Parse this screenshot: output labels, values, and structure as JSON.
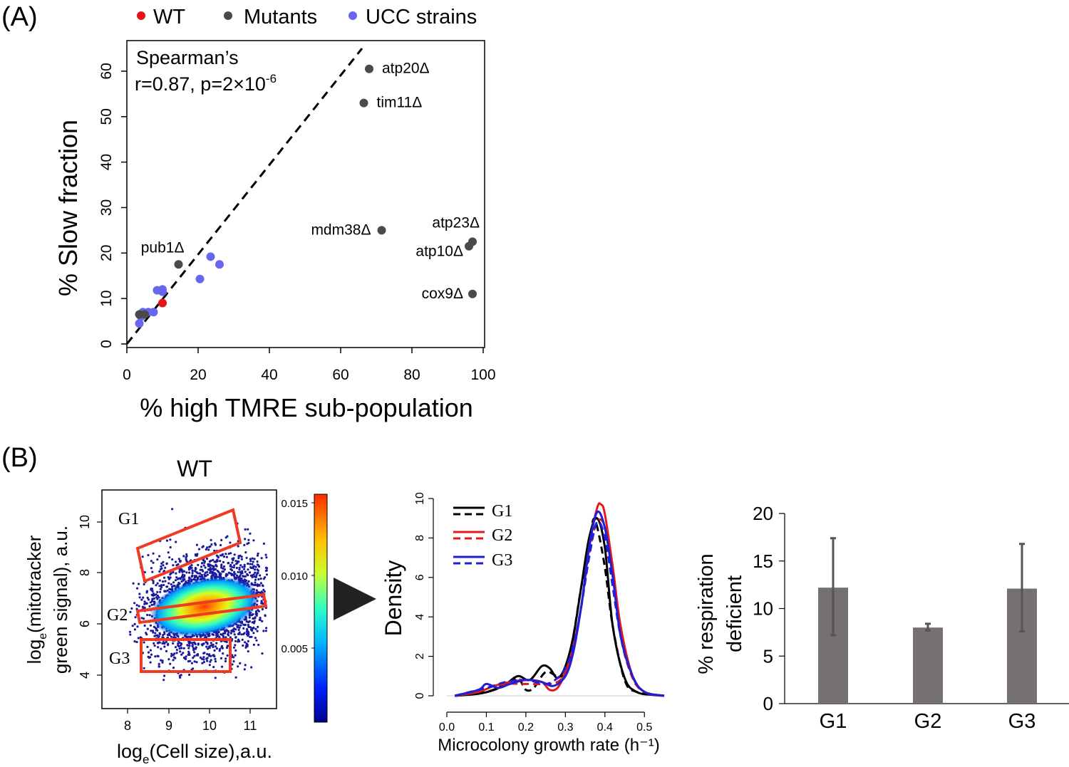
{
  "panel_a": {
    "label": "(A)",
    "stats_line1": "Spearman’s",
    "stats_line2": "r=0.87, p=2×10",
    "stats_exp": "-6"
  },
  "panel_b": {
    "label": "(B)",
    "flow": {
      "title": "WT",
      "ylabel_line1_pre": "log",
      "ylabel_line1_sub": "e",
      "ylabel_line1_post": "(mitotracker",
      "ylabel_line2": "green signal), a.u.",
      "xlabel_pre": "log",
      "xlabel_sub": "e",
      "xlabel_post": "(Cell size),a.u.",
      "gates": [
        "G1",
        "G2",
        "G3"
      ],
      "colorbar_ticks": [
        "0.015",
        "0.010",
        "0.005"
      ]
    },
    "legend": [
      "G1",
      "G2",
      "G3"
    ]
  },
  "colors": {
    "wt": "#e4141b",
    "mutants": "#4a4a4a",
    "ucc": "#6666f0",
    "bar": "#767171",
    "g1": "#000000",
    "g2": "#e31a1c",
    "g3": "#1f1fd6",
    "gate": "#ef3b24"
  },
  "chart_data": [
    {
      "type": "scatter",
      "id": "A",
      "title": "",
      "xlabel": "% high TMRE sub-population",
      "ylabel": "% Slow fraction",
      "xlim": [
        0,
        100
      ],
      "ylim": [
        0,
        65
      ],
      "xticks": [
        0,
        20,
        40,
        60,
        80,
        100
      ],
      "yticks": [
        0,
        10,
        20,
        30,
        40,
        50,
        60
      ],
      "legend": [
        "WT",
        "Mutants",
        "UCC strains"
      ],
      "fit_line": {
        "style": "dashed",
        "from": [
          0,
          0
        ],
        "to": [
          66,
          65
        ]
      },
      "series": [
        {
          "name": "WT",
          "points": [
            [
              10,
              9
            ]
          ]
        },
        {
          "name": "Mutants",
          "points": [
            {
              "x": 68,
              "y": 60.5,
              "label": "atp20Δ"
            },
            {
              "x": 66.5,
              "y": 53,
              "label": "tim11Δ"
            },
            {
              "x": 71.5,
              "y": 25,
              "label": "mdm38Δ"
            },
            {
              "x": 97,
              "y": 22.5,
              "label": "atp23Δ"
            },
            {
              "x": 96,
              "y": 21.5,
              "label": "atp10Δ"
            },
            {
              "x": 97,
              "y": 11,
              "label": "cox9Δ"
            },
            {
              "x": 14.5,
              "y": 17.5,
              "label": "pub1Δ"
            },
            {
              "x": 3.5,
              "y": 6.5,
              "label": ""
            },
            {
              "x": 5,
              "y": 6.5,
              "label": ""
            }
          ]
        },
        {
          "name": "UCC strains",
          "points": [
            [
              23.5,
              19.2
            ],
            [
              26,
              17.5
            ],
            [
              20.5,
              14.3
            ],
            [
              8.5,
              11.8
            ],
            [
              10,
              12
            ],
            [
              10,
              11.5
            ],
            [
              7.5,
              7
            ],
            [
              6,
              7
            ],
            [
              4,
              6
            ],
            [
              3.5,
              4.5
            ],
            [
              4.5,
              7
            ]
          ]
        }
      ]
    },
    {
      "type": "line",
      "id": "B-density",
      "xlabel": "Microcolony growth rate (h⁻¹)",
      "ylabel": "Density",
      "xlim": [
        0,
        0.55
      ],
      "ylim": [
        0,
        10
      ],
      "xticks": [
        0.0,
        0.1,
        0.2,
        0.3,
        0.4,
        0.5
      ],
      "yticks": [
        0,
        2,
        4,
        6,
        8,
        10
      ],
      "series": [
        {
          "name": "G1",
          "style": "solid",
          "x": [
            0.02,
            0.08,
            0.12,
            0.15,
            0.18,
            0.21,
            0.24,
            0.26,
            0.28,
            0.3,
            0.32,
            0.34,
            0.36,
            0.38,
            0.4,
            0.42,
            0.45,
            0.48,
            0.52,
            0.55
          ],
          "y": [
            0,
            0.1,
            0.3,
            0.6,
            1.0,
            0.8,
            1.5,
            1.4,
            0.9,
            1.5,
            3.0,
            5.5,
            8.0,
            9.0,
            7.5,
            3.5,
            0.9,
            0.2,
            0.05,
            0
          ]
        },
        {
          "name": "G1",
          "style": "dashed",
          "x": [
            0.02,
            0.1,
            0.15,
            0.18,
            0.2,
            0.22,
            0.25,
            0.28,
            0.3,
            0.32,
            0.34,
            0.36,
            0.37,
            0.38,
            0.4,
            0.42,
            0.45,
            0.48,
            0.55
          ],
          "y": [
            0,
            0.2,
            0.6,
            0.9,
            0.3,
            0.4,
            1.2,
            1.0,
            1.2,
            3.0,
            5.5,
            7.5,
            8.9,
            8.6,
            6.5,
            3.5,
            0.8,
            0.2,
            0
          ]
        },
        {
          "name": "G2",
          "style": "solid",
          "x": [
            0.02,
            0.08,
            0.12,
            0.16,
            0.2,
            0.24,
            0.26,
            0.28,
            0.3,
            0.32,
            0.34,
            0.36,
            0.38,
            0.39,
            0.4,
            0.42,
            0.44,
            0.47,
            0.5,
            0.55
          ],
          "y": [
            0,
            0.2,
            0.5,
            0.7,
            0.8,
            0.7,
            0.3,
            0.4,
            1.2,
            2.5,
            4.5,
            7.5,
            9.5,
            9.7,
            9.2,
            6.5,
            3.5,
            1.0,
            0.2,
            0
          ]
        },
        {
          "name": "G2",
          "style": "dashed",
          "x": [
            0.02,
            0.1,
            0.15,
            0.2,
            0.25,
            0.28,
            0.3,
            0.32,
            0.34,
            0.36,
            0.38,
            0.4,
            0.42,
            0.44,
            0.47,
            0.5,
            0.55
          ],
          "y": [
            0,
            0.4,
            0.6,
            0.6,
            0.6,
            0.7,
            1.2,
            2.5,
            4.5,
            7.2,
            8.8,
            8.6,
            6.5,
            3.0,
            0.9,
            0.2,
            0
          ]
        },
        {
          "name": "G3",
          "style": "solid",
          "x": [
            0.02,
            0.08,
            0.1,
            0.13,
            0.16,
            0.2,
            0.24,
            0.27,
            0.3,
            0.32,
            0.34,
            0.36,
            0.38,
            0.4,
            0.42,
            0.44,
            0.47,
            0.5,
            0.55
          ],
          "y": [
            0,
            0.3,
            0.6,
            0.4,
            0.6,
            0.8,
            0.7,
            0.5,
            1.0,
            2.2,
            4.5,
            7.5,
            9.3,
            8.5,
            6.0,
            3.0,
            1.0,
            0.2,
            0
          ]
        },
        {
          "name": "G3",
          "style": "dashed",
          "x": [
            0.02,
            0.1,
            0.15,
            0.2,
            0.25,
            0.28,
            0.3,
            0.32,
            0.34,
            0.36,
            0.38,
            0.4,
            0.42,
            0.44,
            0.47,
            0.5,
            0.55
          ],
          "y": [
            0,
            0.4,
            0.7,
            0.8,
            0.6,
            0.9,
            1.4,
            2.5,
            4.5,
            7.0,
            8.8,
            8.0,
            5.5,
            3.0,
            1.0,
            0.2,
            0
          ]
        }
      ]
    },
    {
      "type": "bar",
      "id": "B-bars",
      "categories": [
        "G1",
        "G2",
        "G3"
      ],
      "values": [
        12.2,
        8.0,
        12.1
      ],
      "errors": [
        [
          7.2,
          17.4
        ],
        [
          7.7,
          8.4
        ],
        [
          7.6,
          16.8
        ]
      ],
      "ylabel_line1": "% respiration",
      "ylabel_line2": "deficient",
      "ylim": [
        0,
        20
      ],
      "yticks": [
        0,
        5,
        10,
        15,
        20
      ]
    }
  ]
}
